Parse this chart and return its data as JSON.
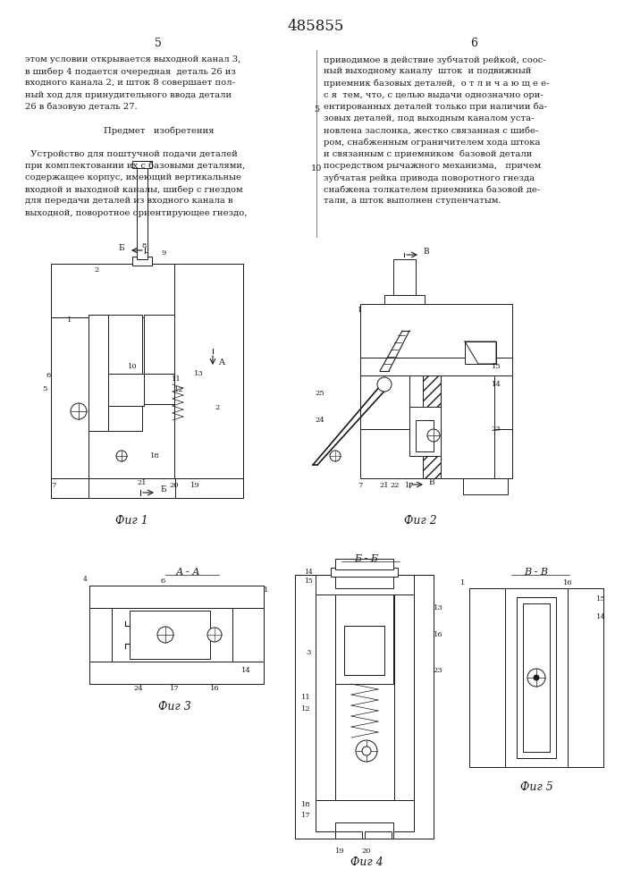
{
  "patent_number": "485855",
  "left_col_text": [
    "этом условии открывается выходной канал 3,",
    "в шибер 4 подается очередная  деталь 26 из",
    "входного канала 2, и шток 8 совершает пол-",
    "ный ход для принудительного ввода детали",
    "26 в базовую деталь 27.",
    "",
    "        Предмет   изобретения",
    "",
    "  Устройство для поштучной подачи деталей",
    "при комплектовании их с базовыми деталями,",
    "содержащее корпус, имеющий вертикальные",
    "входной и выходной каналы, шибер с гнездом",
    "для передачи деталей из входного канала в",
    "выходной, поворотное ориентирующее гнездо,"
  ],
  "right_col_text": [
    "приводимое в действие зубчатой рейкой, соос-",
    "ный выходному каналу  шток  и подвижный",
    "приемник базовых деталей,  о т л и ч а ю щ е е-",
    "с я  тем, что, с целью выдачи однозначно ори-",
    "ентированных деталей только при наличии ба-",
    "зовых деталей, под выходным каналом уста-",
    "новлена заслонка, жестко связанная с шибе-",
    "ром, снабженным ограничителем хода штока",
    "и связанным с приемником  базовой детали",
    "посредством рычажного механизма,   причем",
    "зубчатая рейка привода поворотного гнезда",
    "снабжена толкателем приемника базовой де-",
    "тали, а шток выполнен ступенчатым."
  ],
  "fig_captions": [
    "Фиг 1",
    "Фиг 2",
    "Фиг 3",
    "Фиг 4",
    "Фиг 5"
  ],
  "bg": "#ffffff",
  "fg": "#1a1a1a"
}
